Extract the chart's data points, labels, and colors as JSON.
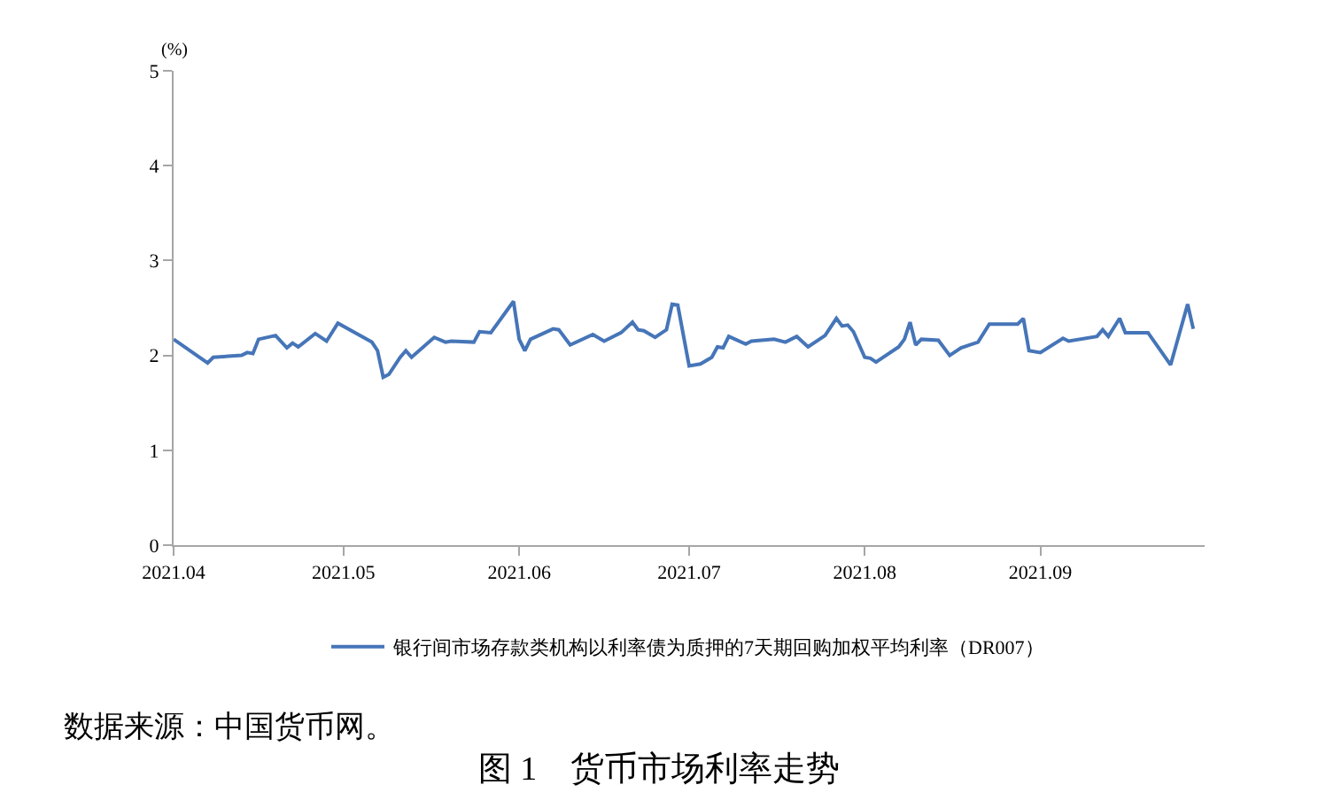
{
  "chart_data": {
    "type": "line",
    "title": "图 1　货币市场利率走势",
    "ylabel": "(%)",
    "annotations": [
      "数据来源：中国货币网。"
    ],
    "x": [
      "2021-04-01",
      "2021-04-07",
      "2021-04-08",
      "2021-04-13",
      "2021-04-14",
      "2021-04-15",
      "2021-04-16",
      "2021-04-19",
      "2021-04-21",
      "2021-04-22",
      "2021-04-23",
      "2021-04-26",
      "2021-04-28",
      "2021-04-30",
      "2021-05-06",
      "2021-05-07",
      "2021-05-08",
      "2021-05-09",
      "2021-05-11",
      "2021-05-12",
      "2021-05-13",
      "2021-05-17",
      "2021-05-19",
      "2021-05-20",
      "2021-05-24",
      "2021-05-25",
      "2021-05-27",
      "2021-05-31",
      "2021-06-01",
      "2021-06-02",
      "2021-06-03",
      "2021-06-07",
      "2021-06-08",
      "2021-06-10",
      "2021-06-14",
      "2021-06-16",
      "2021-06-19",
      "2021-06-21",
      "2021-06-22",
      "2021-06-23",
      "2021-06-25",
      "2021-06-27",
      "2021-06-28",
      "2021-06-29",
      "2021-07-01",
      "2021-07-03",
      "2021-07-05",
      "2021-07-06",
      "2021-07-07",
      "2021-07-08",
      "2021-07-11",
      "2021-07-12",
      "2021-07-16",
      "2021-07-18",
      "2021-07-20",
      "2021-07-22",
      "2021-07-25",
      "2021-07-27",
      "2021-07-28",
      "2021-07-29",
      "2021-07-30",
      "2021-08-01",
      "2021-08-02",
      "2021-08-03",
      "2021-08-07",
      "2021-08-08",
      "2021-08-09",
      "2021-08-10",
      "2021-08-11",
      "2021-08-14",
      "2021-08-16",
      "2021-08-18",
      "2021-08-21",
      "2021-08-23",
      "2021-08-28",
      "2021-08-29",
      "2021-08-30",
      "2021-09-01",
      "2021-09-05",
      "2021-09-06",
      "2021-09-11",
      "2021-09-12",
      "2021-09-13",
      "2021-09-15",
      "2021-09-16",
      "2021-09-20",
      "2021-09-22",
      "2021-09-24",
      "2021-09-27",
      "2021-09-28"
    ],
    "series": [
      {
        "name": "银行间市场存款类机构以利率债为质押的7天期回购加权平均利率（DR007）",
        "color": "#4675b8",
        "values": [
          2.17,
          1.92,
          1.98,
          2.0,
          2.03,
          2.02,
          2.17,
          2.21,
          2.08,
          2.13,
          2.09,
          2.23,
          2.15,
          2.34,
          2.14,
          2.05,
          1.77,
          1.8,
          1.98,
          2.05,
          1.98,
          2.19,
          2.14,
          2.15,
          2.14,
          2.25,
          2.24,
          2.57,
          2.17,
          2.05,
          2.17,
          2.28,
          2.27,
          2.11,
          2.22,
          2.15,
          2.24,
          2.35,
          2.27,
          2.26,
          2.19,
          2.27,
          2.54,
          2.53,
          1.89,
          1.91,
          1.98,
          2.09,
          2.08,
          2.2,
          2.12,
          2.15,
          2.17,
          2.14,
          2.2,
          2.09,
          2.21,
          2.39,
          2.31,
          2.32,
          2.25,
          1.98,
          1.97,
          1.93,
          2.09,
          2.17,
          2.35,
          2.11,
          2.17,
          2.16,
          2.0,
          2.08,
          2.14,
          2.33,
          2.33,
          2.39,
          2.05,
          2.03,
          2.18,
          2.15,
          2.2,
          2.27,
          2.2,
          2.39,
          2.24,
          2.24,
          2.07,
          1.9,
          2.54,
          2.28
        ]
      }
    ],
    "xlim": [
      "2021-04-01",
      "2021-09-30"
    ],
    "xticks": [
      {
        "value": "2021-04-01",
        "label": "2021.04"
      },
      {
        "value": "2021-05-01",
        "label": "2021.05"
      },
      {
        "value": "2021-06-01",
        "label": "2021.06"
      },
      {
        "value": "2021-07-01",
        "label": "2021.07"
      },
      {
        "value": "2021-08-01",
        "label": "2021.08"
      },
      {
        "value": "2021-09-01",
        "label": "2021.09"
      }
    ],
    "ylim": [
      0,
      5
    ],
    "yticks": [
      0,
      1,
      2,
      3,
      4,
      5
    ],
    "legend": "bottom",
    "marker": "none",
    "line_style": "solid"
  }
}
